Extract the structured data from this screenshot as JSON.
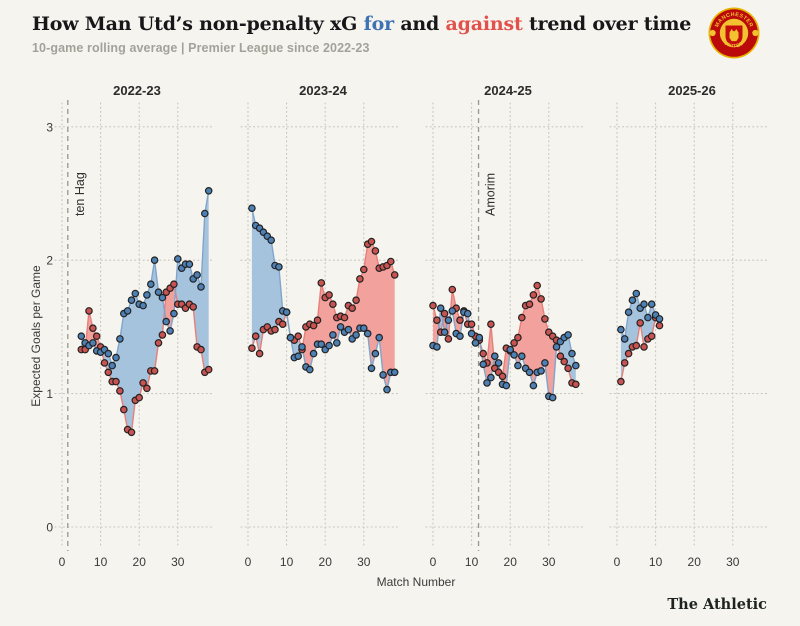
{
  "header": {
    "title_parts": {
      "pre": "How Man Utd’s non-penalty xG ",
      "for_word": "for",
      "mid": " and ",
      "against_word": "against",
      "post": " trend over time"
    },
    "subtitle": "10-game rolling average | Premier League since 2022-23",
    "logo_name": "manchester-united-crest"
  },
  "footer": {
    "brand": "The Athletic"
  },
  "chart_data": {
    "type": "line",
    "title": "How Man Utd's non-penalty xG for and against trend over time",
    "subtitle": "10-game rolling average | Premier League since 2022-23",
    "xlabel": "Match Number",
    "ylabel": "Expected Goals per Game",
    "ylim": [
      0,
      3
    ],
    "yticks": [
      0,
      1,
      2,
      3
    ],
    "xticks_per_panel": [
      0,
      10,
      20,
      30
    ],
    "grid": "dotted",
    "legend": "in-title",
    "series_names": [
      "xG for",
      "xG against"
    ],
    "colors": {
      "for_area": "#a6c3de",
      "against_area": "#f3a19d",
      "for_line": "#7fa5cb",
      "against_line": "#e77f7a",
      "for_point": "#4d80b4",
      "against_point": "#c95350",
      "point_stroke": "#222222",
      "grid": "#c7c6c0",
      "manager_line": "#98978f",
      "axis_text": "#3a3a3a"
    },
    "panels": [
      {
        "season": "2022-23",
        "start_match": 5,
        "xg_for": [
          1.43,
          1.38,
          1.36,
          1.38,
          1.32,
          1.31,
          1.33,
          1.3,
          1.21,
          1.27,
          1.41,
          1.6,
          1.62,
          1.7,
          1.75,
          1.67,
          1.66,
          1.74,
          1.82,
          2.0,
          1.76,
          1.72,
          1.54,
          1.47,
          1.6,
          2.01,
          1.94,
          1.97,
          1.97,
          1.86,
          1.89,
          1.8,
          2.35,
          2.52
        ],
        "xg_against": [
          1.33,
          1.33,
          1.62,
          1.49,
          1.43,
          1.35,
          1.23,
          1.16,
          1.09,
          1.09,
          1.02,
          0.88,
          0.73,
          0.71,
          0.95,
          0.97,
          1.08,
          1.04,
          1.17,
          1.17,
          1.38,
          1.44,
          1.76,
          1.79,
          1.82,
          1.67,
          1.67,
          1.64,
          1.67,
          1.65,
          1.35,
          1.33,
          1.16,
          1.18
        ],
        "manager": {
          "label": "ten Hag",
          "match": 1.5
        }
      },
      {
        "season": "2023-24",
        "start_match": 1,
        "xg_for": [
          2.39,
          2.26,
          2.24,
          2.21,
          2.18,
          2.15,
          1.96,
          1.95,
          1.62,
          1.61,
          1.42,
          1.27,
          1.28,
          1.35,
          1.2,
          1.18,
          1.3,
          1.37,
          1.37,
          1.33,
          1.36,
          1.44,
          1.38,
          1.5,
          1.46,
          1.48,
          1.41,
          1.44,
          1.49,
          1.49,
          1.45,
          1.19,
          1.3,
          1.42,
          1.14,
          1.03,
          1.16,
          1.16
        ],
        "xg_against": [
          1.34,
          1.43,
          1.3,
          1.48,
          1.5,
          1.47,
          1.48,
          1.54,
          1.52,
          1.61,
          1.42,
          1.4,
          1.43,
          1.33,
          1.5,
          1.52,
          1.51,
          1.55,
          1.83,
          1.72,
          1.74,
          1.67,
          1.57,
          1.58,
          1.57,
          1.66,
          1.64,
          1.7,
          1.86,
          1.93,
          2.12,
          2.14,
          2.07,
          1.94,
          1.95,
          1.96,
          1.99,
          1.89
        ],
        "manager": null
      },
      {
        "season": "2024-25",
        "start_match": 0,
        "xg_for": [
          1.36,
          1.35,
          1.64,
          1.46,
          1.55,
          1.62,
          1.45,
          1.43,
          1.61,
          1.6,
          1.45,
          1.38,
          1.42,
          1.22,
          1.08,
          1.12,
          1.28,
          1.23,
          1.07,
          1.06,
          1.33,
          1.29,
          1.21,
          1.28,
          1.19,
          1.16,
          1.06,
          1.16,
          1.17,
          1.23,
          0.98,
          0.97,
          1.35,
          1.39,
          1.42,
          1.44,
          1.3,
          1.21
        ],
        "xg_against": [
          1.66,
          1.55,
          1.46,
          1.6,
          1.41,
          1.78,
          1.64,
          1.55,
          1.62,
          1.52,
          1.52,
          1.43,
          1.4,
          1.3,
          1.23,
          1.52,
          1.19,
          1.16,
          1.13,
          1.34,
          1.32,
          1.38,
          1.42,
          1.57,
          1.66,
          1.67,
          1.74,
          1.81,
          1.71,
          1.56,
          1.46,
          1.43,
          1.4,
          1.28,
          1.24,
          1.19,
          1.08,
          1.07
        ],
        "manager": {
          "label": "Amorim",
          "match": 11.8
        }
      },
      {
        "season": "2025-26",
        "start_match": 1,
        "xg_for": [
          1.48,
          1.41,
          1.61,
          1.7,
          1.75,
          1.64,
          1.67,
          1.57,
          1.67,
          1.59,
          1.56
        ],
        "xg_against": [
          1.09,
          1.23,
          1.3,
          1.35,
          1.36,
          1.53,
          1.35,
          1.41,
          1.43,
          1.57,
          1.51
        ],
        "manager": null
      }
    ]
  }
}
